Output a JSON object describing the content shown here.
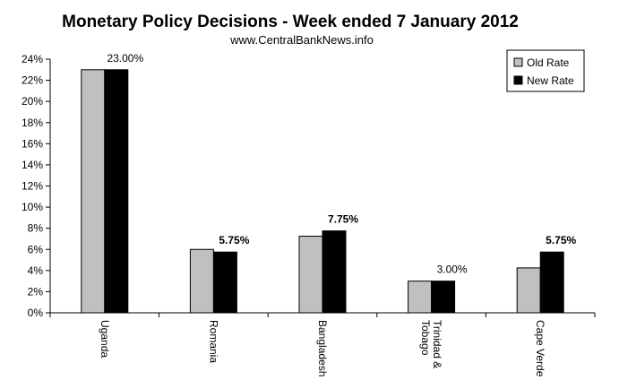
{
  "chart_data": {
    "type": "bar",
    "title": "Monetary Policy Decisions - Week ended  7 January 2012",
    "subtitle": "www.CentralBankNews.info",
    "categories": [
      "Uganda",
      "Romania",
      "Bangladesh",
      "Trinidad & Tobago",
      "Cape Verde"
    ],
    "series": [
      {
        "name": "Old Rate",
        "values": [
          23.0,
          6.0,
          7.25,
          3.0,
          4.25
        ],
        "color": "#c0c0c0"
      },
      {
        "name": "New Rate",
        "values": [
          23.0,
          5.75,
          7.75,
          3.0,
          5.75
        ],
        "color": "#000000"
      }
    ],
    "data_labels": [
      {
        "category": "Uganda",
        "text": "23.00%",
        "bold": false
      },
      {
        "category": "Romania",
        "text": "5.75%",
        "bold": true
      },
      {
        "category": "Bangladesh",
        "text": "7.75%",
        "bold": true
      },
      {
        "category": "Trinidad & Tobago",
        "text": "3.00%",
        "bold": false
      },
      {
        "category": "Cape Verde",
        "text": "5.75%",
        "bold": true
      }
    ],
    "yticks": [
      "0%",
      "2%",
      "4%",
      "6%",
      "8%",
      "10%",
      "12%",
      "14%",
      "16%",
      "18%",
      "20%",
      "22%",
      "24%"
    ],
    "ylim": [
      0,
      24
    ],
    "grid": false,
    "legend_position": "top-right"
  }
}
